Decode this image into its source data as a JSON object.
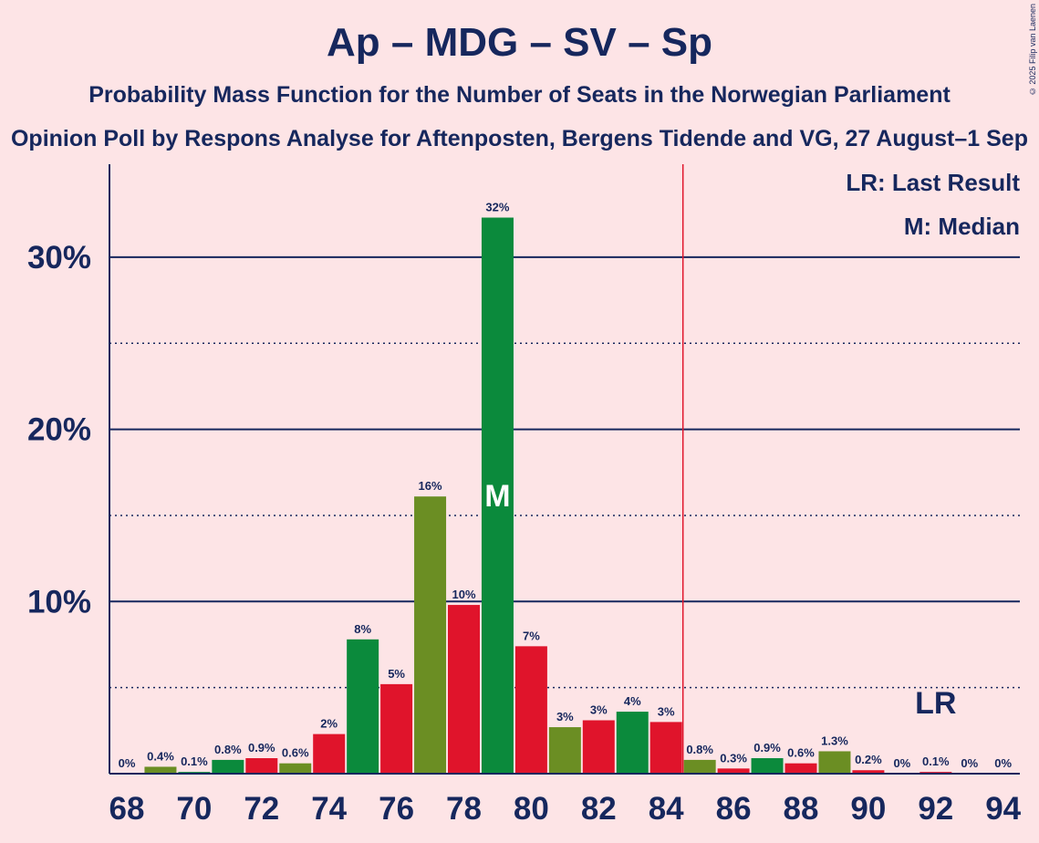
{
  "title": "Ap – MDG – SV – Sp",
  "subtitle": "Probability Mass Function for the Number of Seats in the Norwegian Parliament",
  "subtitle2": "Opinion Poll by Respons Analyse for Aftenposten, Bergens Tidende and VG, 27 August–1 Sep",
  "copyright": "© 2025 Filip van Laenen",
  "legend": {
    "last_result": "LR: Last Result",
    "median": "M: Median"
  },
  "chart_data": {
    "type": "bar",
    "x": [
      68,
      69,
      70,
      71,
      72,
      73,
      74,
      75,
      76,
      77,
      78,
      79,
      80,
      81,
      82,
      83,
      84,
      85,
      86,
      87,
      88,
      89,
      90,
      91,
      92,
      93,
      94
    ],
    "values": [
      0,
      0.4,
      0.1,
      0.8,
      0.9,
      0.6,
      2.3,
      7.8,
      5.2,
      16.1,
      9.8,
      32.3,
      7.4,
      2.7,
      3.1,
      3.6,
      3.0,
      0.8,
      0.3,
      0.9,
      0.6,
      1.3,
      0.2,
      0,
      0.1,
      0,
      0
    ],
    "labels": [
      "0%",
      "0.4%",
      "0.1%",
      "0.8%",
      "0.9%",
      "0.6%",
      "2%",
      "8%",
      "5%",
      "16%",
      "10%",
      "32%",
      "7%",
      "3%",
      "3%",
      "4%",
      "3%",
      "0.8%",
      "0.3%",
      "0.9%",
      "0.6%",
      "1.3%",
      "0.2%",
      "0%",
      "0.1%",
      "0%",
      "0%"
    ],
    "colors": [
      "#6b8e23",
      "#6b8e23",
      "#0b8a3c",
      "#0b8a3c",
      "#e0142b",
      "#6b8e23",
      "#e0142b",
      "#0b8a3c",
      "#e0142b",
      "#6b8e23",
      "#e0142b",
      "#0b8a3c",
      "#e0142b",
      "#6b8e23",
      "#e0142b",
      "#0b8a3c",
      "#e0142b",
      "#6b8e23",
      "#e0142b",
      "#0b8a3c",
      "#e0142b",
      "#6b8e23",
      "#e0142b",
      "#6b8e23",
      "#e0142b",
      "#0b8a3c",
      "#e0142b"
    ],
    "xticks": [
      68,
      70,
      72,
      74,
      76,
      78,
      80,
      82,
      84,
      86,
      88,
      90,
      92,
      94
    ],
    "yticks": [
      10,
      20,
      30
    ],
    "ytick_labels": [
      "10%",
      "20%",
      "30%"
    ],
    "ylim": [
      0,
      35
    ],
    "median": 79,
    "median_marker": "M",
    "last_result": 84.5,
    "last_result_marker": "LR",
    "last_result_label_x": 92
  }
}
